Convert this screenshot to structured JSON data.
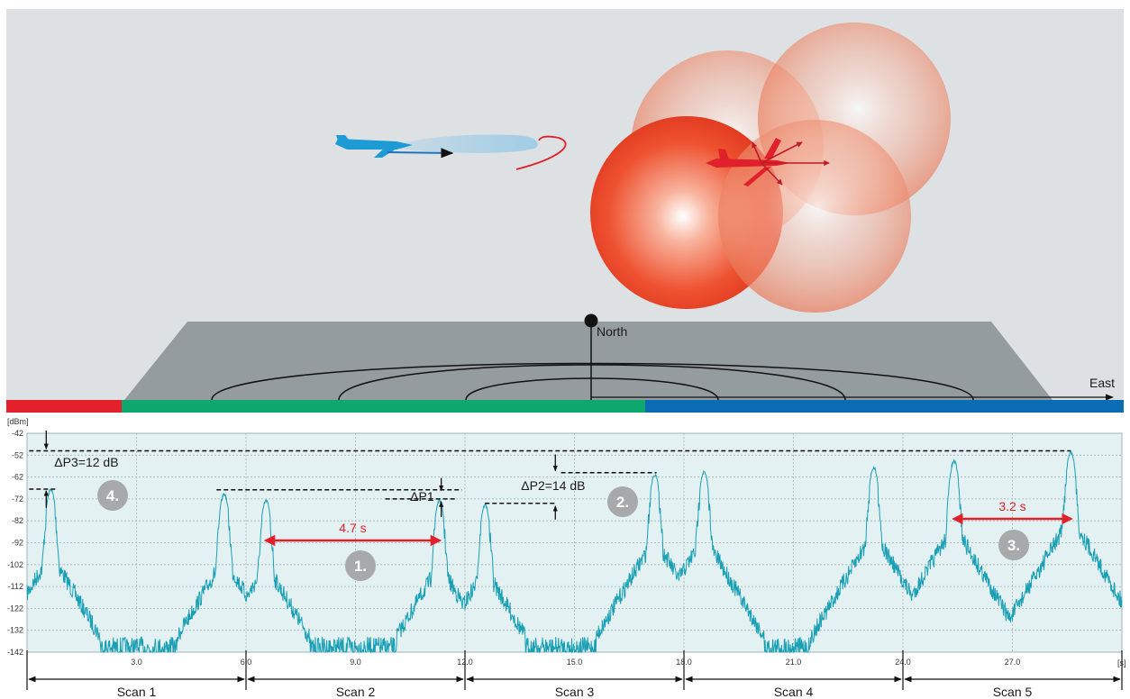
{
  "scene": {
    "north_label": "North",
    "east_label": "East"
  },
  "chart_data": {
    "type": "line",
    "ylabel": "[dBm]",
    "xlabel": "[s]",
    "ylim": [
      -142,
      -42
    ],
    "xlim": [
      0,
      30
    ],
    "y_ticks": [
      -42,
      -52,
      -62,
      -72,
      -82,
      -92,
      -102,
      -112,
      -122,
      -132,
      -142
    ],
    "x_ticks": [
      3.0,
      6.0,
      9.0,
      12.0,
      15.0,
      18.0,
      21.0,
      24.0,
      27.0
    ],
    "x_tick_labels": [
      "3.0",
      "6.0",
      "9.0",
      "12.0",
      "15.0",
      "18.0",
      "21.0",
      "24.0",
      "27.0"
    ],
    "grid": true,
    "noise_floor": -131,
    "series": [
      {
        "color": "#1aa0b4",
        "peaks": [
          {
            "x": 0.65,
            "y": -67
          },
          {
            "x": 5.4,
            "y": -69
          },
          {
            "x": 6.55,
            "y": -72
          },
          {
            "x": 11.3,
            "y": -72
          },
          {
            "x": 12.55,
            "y": -74
          },
          {
            "x": 17.2,
            "y": -60
          },
          {
            "x": 18.55,
            "y": -59
          },
          {
            "x": 23.2,
            "y": -57
          },
          {
            "x": 25.4,
            "y": -54
          },
          {
            "x": 28.6,
            "y": -50
          }
        ]
      }
    ],
    "scans": [
      {
        "label": "Scan 1",
        "start": 0,
        "end": 6
      },
      {
        "label": "Scan 2",
        "start": 6,
        "end": 12
      },
      {
        "label": "Scan 3",
        "start": 12,
        "end": 18
      },
      {
        "label": "Scan 4",
        "start": 18,
        "end": 24
      },
      {
        "label": "Scan 5",
        "start": 24,
        "end": 30
      }
    ],
    "annotations": {
      "dp3": "ΔP3=12 dB",
      "dp1": "ΔP1",
      "dp2": "ΔP2=14 dB",
      "t1": "4.7 s",
      "t2": "3.2 s",
      "badge1": "1.",
      "badge2": "2.",
      "badge3": "3.",
      "badge4": "4."
    }
  },
  "colors": {
    "trace": "#1aa0b4",
    "band_red": "#e4202d",
    "band_green": "#0ea86f",
    "band_blue": "#0a6cb3",
    "arrow_red": "#e0202a",
    "badge": "#a7a9ab"
  }
}
